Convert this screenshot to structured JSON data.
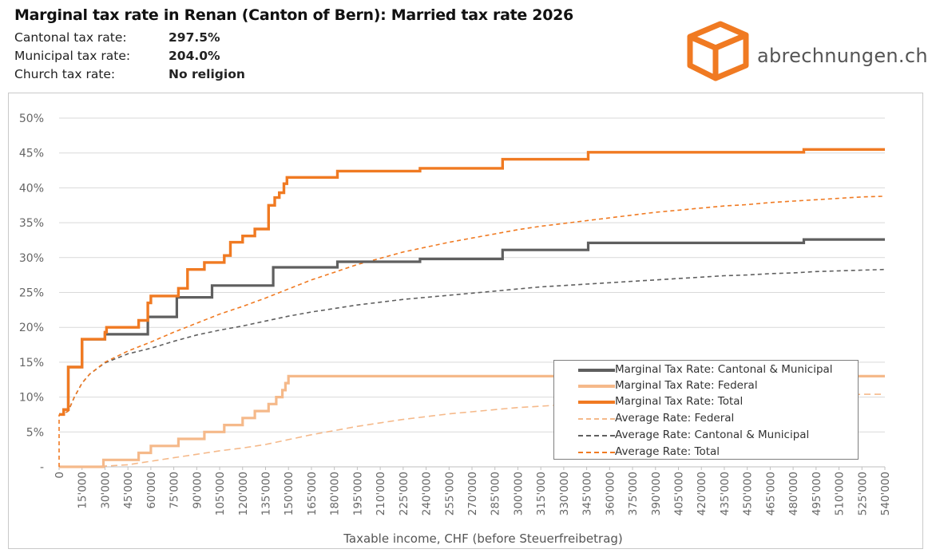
{
  "header": {
    "title": "Marginal tax rate in Renan (Canton of Bern): Married tax rate 2026",
    "rows": [
      {
        "label": "Cantonal tax rate:",
        "value": "297.5%"
      },
      {
        "label": "Municipal tax rate:",
        "value": "204.0%"
      },
      {
        "label": "Church tax rate:",
        "value": "No religion"
      }
    ]
  },
  "logo": {
    "text": "abrechnungen.ch",
    "icon": "box-icon",
    "color": "#f07a22"
  },
  "colors": {
    "total": "#f07a22",
    "cantonal": "#5f5f5f",
    "federal": "#f5b98a",
    "avg_federal": "#f5b98a",
    "avg_cantonal": "#5f5f5f",
    "avg_total": "#f07a22",
    "grid": "#d9d9d9"
  },
  "chart_data": {
    "type": "line",
    "xlabel": "Taxable income, CHF (before Steuerfreibetrag)",
    "ylabel": "",
    "xlim": [
      0,
      540000
    ],
    "ylim": [
      0,
      50
    ],
    "grid": true,
    "legend_position": "bottom-right",
    "x_ticks": [
      "0",
      "15'000",
      "30'000",
      "45'000",
      "60'000",
      "75'000",
      "90'000",
      "105'000",
      "120'000",
      "135'000",
      "150'000",
      "165'000",
      "180'000",
      "195'000",
      "210'000",
      "225'000",
      "240'000",
      "255'000",
      "270'000",
      "285'000",
      "300'000",
      "315'000",
      "330'000",
      "345'000",
      "360'000",
      "375'000",
      "390'000",
      "405'000",
      "420'000",
      "435'000",
      "450'000",
      "465'000",
      "480'000",
      "495'000",
      "510'000",
      "525'000",
      "540'000"
    ],
    "y_ticks": [
      "-",
      "5%",
      "10%",
      "15%",
      "20%",
      "25%",
      "30%",
      "35%",
      "40%",
      "45%",
      "50%"
    ],
    "series": [
      {
        "name": "Marginal Tax Rate: Cantonal & Municipal",
        "style": "solid",
        "points": [
          [
            0,
            7.5
          ],
          [
            3000,
            7.5
          ],
          [
            3000,
            8.2
          ],
          [
            6000,
            8.2
          ],
          [
            6000,
            14.3
          ],
          [
            15000,
            14.3
          ],
          [
            15000,
            18.3
          ],
          [
            30000,
            18.3
          ],
          [
            30000,
            19.0
          ],
          [
            58000,
            19.0
          ],
          [
            58000,
            21.5
          ],
          [
            77000,
            21.5
          ],
          [
            77000,
            24.3
          ],
          [
            100000,
            24.3
          ],
          [
            100000,
            26.0
          ],
          [
            140000,
            26.0
          ],
          [
            140000,
            28.6
          ],
          [
            182000,
            28.6
          ],
          [
            182000,
            29.4
          ],
          [
            236000,
            29.4
          ],
          [
            236000,
            29.8
          ],
          [
            290000,
            29.8
          ],
          [
            290000,
            31.1
          ],
          [
            346000,
            31.1
          ],
          [
            346000,
            32.1
          ],
          [
            487000,
            32.1
          ],
          [
            487000,
            32.6
          ],
          [
            540000,
            32.6
          ]
        ]
      },
      {
        "name": "Marginal Tax Rate: Federal",
        "style": "solid",
        "points": [
          [
            0,
            0
          ],
          [
            29000,
            0
          ],
          [
            29000,
            1.0
          ],
          [
            52000,
            1.0
          ],
          [
            52000,
            2.0
          ],
          [
            60000,
            2.0
          ],
          [
            60000,
            3.0
          ],
          [
            78000,
            3.0
          ],
          [
            78000,
            4.0
          ],
          [
            95000,
            4.0
          ],
          [
            95000,
            5.0
          ],
          [
            108000,
            5.0
          ],
          [
            108000,
            6.0
          ],
          [
            120000,
            6.0
          ],
          [
            120000,
            7.0
          ],
          [
            128000,
            7.0
          ],
          [
            128000,
            8.0
          ],
          [
            137000,
            8.0
          ],
          [
            137000,
            9.0
          ],
          [
            142000,
            9.0
          ],
          [
            142000,
            10.0
          ],
          [
            146000,
            10.0
          ],
          [
            146000,
            11.0
          ],
          [
            148000,
            11.0
          ],
          [
            148000,
            12.0
          ],
          [
            150000,
            12.0
          ],
          [
            150000,
            13.0
          ],
          [
            540000,
            13.0
          ]
        ]
      },
      {
        "name": "Marginal Tax Rate: Total",
        "style": "solid",
        "points": [
          [
            0,
            7.5
          ],
          [
            3000,
            7.5
          ],
          [
            3000,
            8.2
          ],
          [
            6000,
            8.2
          ],
          [
            6000,
            14.3
          ],
          [
            15000,
            14.3
          ],
          [
            15000,
            18.3
          ],
          [
            30000,
            18.3
          ],
          [
            30000,
            19.3
          ],
          [
            31000,
            19.3
          ],
          [
            31000,
            20.0
          ],
          [
            52000,
            20.0
          ],
          [
            52000,
            21.0
          ],
          [
            58000,
            21.0
          ],
          [
            58000,
            23.5
          ],
          [
            60000,
            23.5
          ],
          [
            60000,
            24.5
          ],
          [
            78000,
            24.5
          ],
          [
            78000,
            25.6
          ],
          [
            84000,
            25.6
          ],
          [
            84000,
            28.3
          ],
          [
            95000,
            28.3
          ],
          [
            95000,
            29.3
          ],
          [
            108000,
            29.3
          ],
          [
            108000,
            30.3
          ],
          [
            112000,
            30.3
          ],
          [
            112000,
            32.2
          ],
          [
            120000,
            32.2
          ],
          [
            120000,
            33.1
          ],
          [
            128000,
            33.1
          ],
          [
            128000,
            34.1
          ],
          [
            137000,
            34.1
          ],
          [
            137000,
            37.5
          ],
          [
            141000,
            37.5
          ],
          [
            141000,
            38.6
          ],
          [
            144000,
            38.6
          ],
          [
            144000,
            39.3
          ],
          [
            147000,
            39.3
          ],
          [
            147000,
            40.6
          ],
          [
            149000,
            40.6
          ],
          [
            149000,
            41.5
          ],
          [
            182000,
            41.5
          ],
          [
            182000,
            42.4
          ],
          [
            236000,
            42.4
          ],
          [
            236000,
            42.8
          ],
          [
            290000,
            42.8
          ],
          [
            290000,
            44.1
          ],
          [
            346000,
            44.1
          ],
          [
            346000,
            45.1
          ],
          [
            487000,
            45.1
          ],
          [
            487000,
            45.5
          ],
          [
            540000,
            45.5
          ]
        ]
      },
      {
        "name": "Average Rate: Federal",
        "style": "dashed",
        "points": [
          [
            0,
            0
          ],
          [
            30000,
            0.1
          ],
          [
            45000,
            0.3
          ],
          [
            60000,
            0.8
          ],
          [
            75000,
            1.3
          ],
          [
            90000,
            1.8
          ],
          [
            105000,
            2.3
          ],
          [
            120000,
            2.7
          ],
          [
            135000,
            3.2
          ],
          [
            150000,
            3.9
          ],
          [
            165000,
            4.6
          ],
          [
            180000,
            5.2
          ],
          [
            195000,
            5.8
          ],
          [
            210000,
            6.3
          ],
          [
            225000,
            6.8
          ],
          [
            240000,
            7.2
          ],
          [
            255000,
            7.6
          ],
          [
            270000,
            7.9
          ],
          [
            285000,
            8.2
          ],
          [
            300000,
            8.5
          ],
          [
            315000,
            8.7
          ],
          [
            330000,
            8.9
          ],
          [
            345000,
            9.1
          ],
          [
            360000,
            9.3
          ],
          [
            375000,
            9.5
          ],
          [
            390000,
            9.6
          ],
          [
            405000,
            9.7
          ],
          [
            420000,
            9.8
          ],
          [
            435000,
            9.9
          ],
          [
            450000,
            10.0
          ],
          [
            465000,
            10.1
          ],
          [
            480000,
            10.2
          ],
          [
            495000,
            10.3
          ],
          [
            510000,
            10.3
          ],
          [
            525000,
            10.4
          ],
          [
            540000,
            10.4
          ]
        ]
      },
      {
        "name": "Average Rate: Cantonal & Municipal",
        "style": "dashed",
        "points": [
          [
            0,
            7.5
          ],
          [
            3000,
            7.6
          ],
          [
            6000,
            8.0
          ],
          [
            10000,
            10.0
          ],
          [
            15000,
            12.0
          ],
          [
            20000,
            13.3
          ],
          [
            30000,
            14.9
          ],
          [
            45000,
            16.2
          ],
          [
            60000,
            17.0
          ],
          [
            75000,
            18.0
          ],
          [
            90000,
            18.9
          ],
          [
            105000,
            19.6
          ],
          [
            120000,
            20.2
          ],
          [
            135000,
            20.9
          ],
          [
            150000,
            21.6
          ],
          [
            165000,
            22.2
          ],
          [
            180000,
            22.7
          ],
          [
            195000,
            23.2
          ],
          [
            210000,
            23.6
          ],
          [
            225000,
            24.0
          ],
          [
            240000,
            24.3
          ],
          [
            255000,
            24.6
          ],
          [
            270000,
            24.9
          ],
          [
            285000,
            25.2
          ],
          [
            300000,
            25.5
          ],
          [
            315000,
            25.8
          ],
          [
            330000,
            26.0
          ],
          [
            345000,
            26.2
          ],
          [
            360000,
            26.4
          ],
          [
            375000,
            26.6
          ],
          [
            390000,
            26.8
          ],
          [
            405000,
            27.0
          ],
          [
            420000,
            27.2
          ],
          [
            435000,
            27.4
          ],
          [
            450000,
            27.5
          ],
          [
            465000,
            27.7
          ],
          [
            480000,
            27.8
          ],
          [
            495000,
            28.0
          ],
          [
            510000,
            28.1
          ],
          [
            525000,
            28.2
          ],
          [
            540000,
            28.3
          ]
        ]
      },
      {
        "name": "Average Rate: Total",
        "style": "dashed",
        "points": [
          [
            0,
            7.5
          ],
          [
            3000,
            7.6
          ],
          [
            6000,
            8.0
          ],
          [
            10000,
            10.0
          ],
          [
            15000,
            12.0
          ],
          [
            20000,
            13.3
          ],
          [
            30000,
            15.0
          ],
          [
            45000,
            16.6
          ],
          [
            60000,
            17.9
          ],
          [
            75000,
            19.3
          ],
          [
            90000,
            20.6
          ],
          [
            105000,
            21.9
          ],
          [
            120000,
            23.0
          ],
          [
            135000,
            24.2
          ],
          [
            150000,
            25.5
          ],
          [
            165000,
            26.8
          ],
          [
            180000,
            27.9
          ],
          [
            195000,
            29.0
          ],
          [
            210000,
            29.9
          ],
          [
            225000,
            30.8
          ],
          [
            240000,
            31.5
          ],
          [
            255000,
            32.2
          ],
          [
            270000,
            32.8
          ],
          [
            285000,
            33.4
          ],
          [
            300000,
            34.0
          ],
          [
            315000,
            34.5
          ],
          [
            330000,
            34.9
          ],
          [
            345000,
            35.3
          ],
          [
            360000,
            35.7
          ],
          [
            375000,
            36.1
          ],
          [
            390000,
            36.5
          ],
          [
            405000,
            36.8
          ],
          [
            420000,
            37.1
          ],
          [
            435000,
            37.4
          ],
          [
            450000,
            37.6
          ],
          [
            465000,
            37.9
          ],
          [
            480000,
            38.1
          ],
          [
            495000,
            38.3
          ],
          [
            510000,
            38.5
          ],
          [
            525000,
            38.7
          ],
          [
            540000,
            38.8
          ]
        ]
      }
    ]
  },
  "legend": {
    "items": [
      {
        "label": "Marginal Tax Rate: Cantonal & Municipal",
        "style": "solid",
        "color": "#5f5f5f"
      },
      {
        "label": "Marginal Tax Rate: Federal",
        "style": "solid",
        "color": "#f5b98a"
      },
      {
        "label": "Marginal Tax Rate: Total",
        "style": "solid",
        "color": "#f07a22"
      },
      {
        "label": "Average Rate: Federal",
        "style": "dashed",
        "color": "#f5b98a"
      },
      {
        "label": "Average Rate: Cantonal & Municipal",
        "style": "dashed",
        "color": "#5f5f5f"
      },
      {
        "label": "Average Rate: Total",
        "style": "dashed",
        "color": "#f07a22"
      }
    ]
  }
}
